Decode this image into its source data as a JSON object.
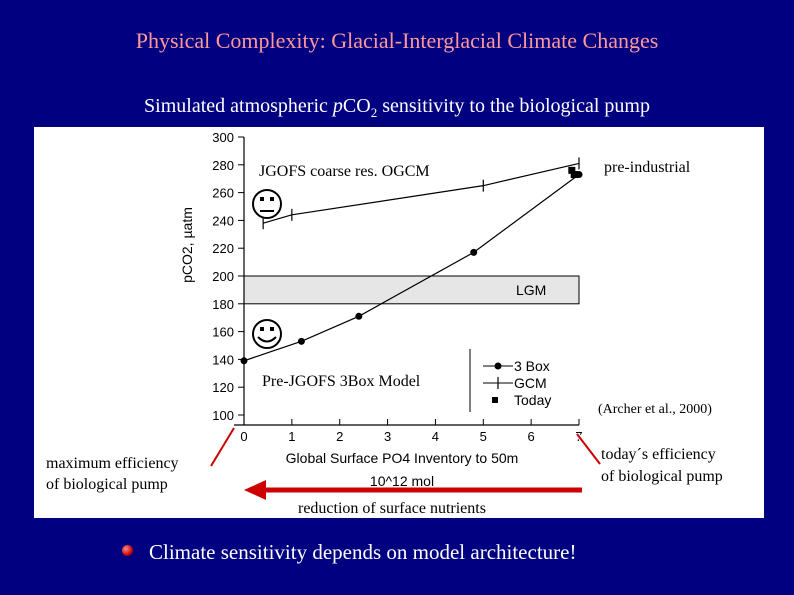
{
  "slide": {
    "title": "Physical Complexity: Glacial-Interglacial Climate Changes",
    "subtitle_prefix": "Simulated atmospheric ",
    "subtitle_p": "p",
    "subtitle_co": "CO",
    "subtitle_sub": "2",
    "subtitle_suffix": " sensitivity to the biological pump",
    "bullet": "Climate sensitivity depends on model architecture!",
    "colors": {
      "background": "#000080",
      "title": "#FF9999",
      "arrow": "#CC0000"
    }
  },
  "annotations": {
    "jgofs": "JGOFS coarse res. OGCM",
    "pre_industrial": "pre-industrial",
    "pre_jgofs": "Pre-JGOFS 3Box Model",
    "citation": "(Archer et al., 2000)",
    "max_efficiency_1": "maximum efficiency",
    "max_efficiency_2": "of biological pump",
    "today_efficiency_1": "today´s efficiency",
    "today_efficiency_2": "of biological pump",
    "reduction": "reduction of surface nutrients",
    "neutral_face_icon": "neutral-face-icon",
    "smiley_face_icon": "smiley-face-icon"
  },
  "chart_data": {
    "type": "line",
    "ylabel": "pCO2, µatm",
    "xlabel_line1": "Global Surface PO4 Inventory to 50m",
    "xlabel_line2": "10^12 mol",
    "xlim": [
      0,
      7
    ],
    "ylim": [
      100,
      300
    ],
    "xticks": [
      0,
      1,
      2,
      3,
      4,
      5,
      6,
      7
    ],
    "yticks": [
      100,
      120,
      140,
      160,
      180,
      200,
      220,
      240,
      260,
      280,
      300
    ],
    "band": {
      "label": "LGM",
      "y0": 180,
      "y1": 200
    },
    "legend_position": "bottom-right",
    "series": [
      {
        "name": "3 Box",
        "marker": "circle",
        "x": [
          0,
          1.2,
          2.4,
          4.8,
          7.0
        ],
        "y": [
          139,
          153,
          171,
          217,
          273
        ]
      },
      {
        "name": "GCM",
        "marker": "plus",
        "x": [
          0.4,
          1.0,
          5.0,
          7.0
        ],
        "y": [
          238,
          244,
          265,
          281
        ]
      },
      {
        "name": "Today",
        "marker": "square",
        "x": [
          6.85,
          6.9
        ],
        "y": [
          276,
          273
        ]
      }
    ]
  }
}
